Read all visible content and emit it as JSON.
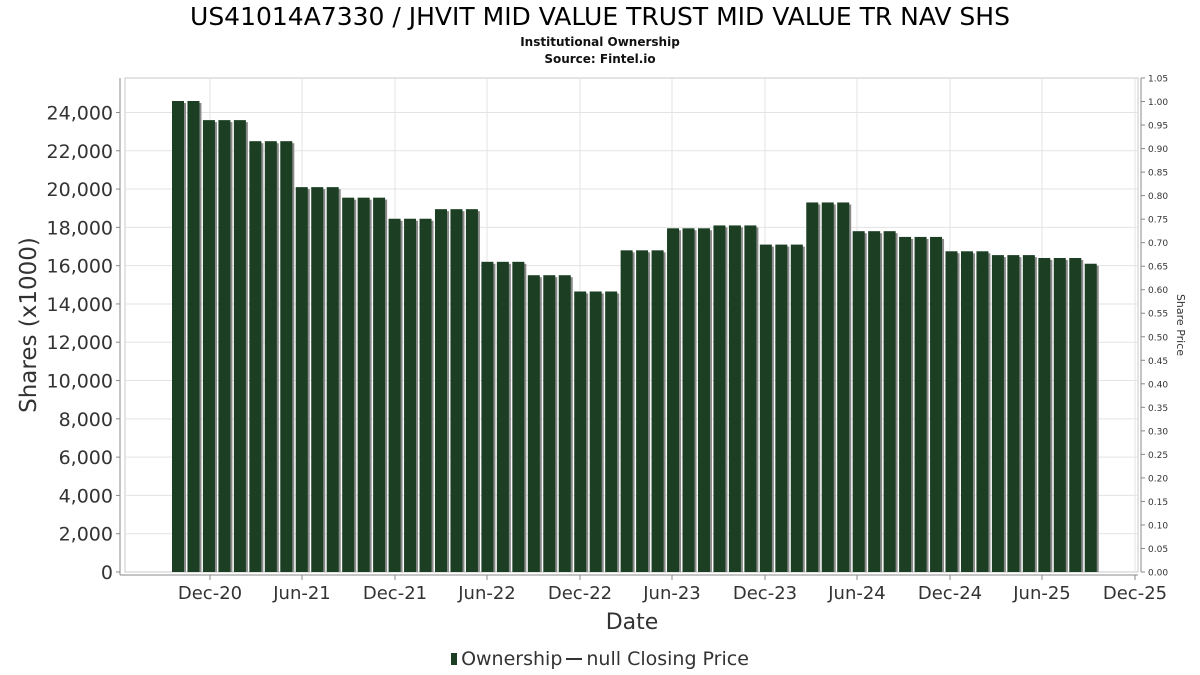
{
  "chart_data": {
    "type": "bar",
    "title": "US41014A7330 / JHVIT MID VALUE TRUST MID VALUE TR NAV SHS",
    "subtitle": "Institutional Ownership",
    "source": "Source: Fintel.io",
    "xlabel": "Date",
    "ylabel": "Shares (x1000)",
    "y2label": "Share Price",
    "ylim": [
      0,
      25800
    ],
    "y2lim": [
      0,
      1.05
    ],
    "grid": true,
    "yticks": [
      "0",
      "2,000",
      "4,000",
      "6,000",
      "8,000",
      "10,000",
      "12,000",
      "14,000",
      "16,000",
      "18,000",
      "20,000",
      "22,000",
      "24,000"
    ],
    "y2ticks": [
      "0.00",
      "0.05",
      "0.10",
      "0.15",
      "0.20",
      "0.25",
      "0.30",
      "0.35",
      "0.40",
      "0.45",
      "0.50",
      "0.55",
      "0.60",
      "0.65",
      "0.70",
      "0.75",
      "0.80",
      "0.85",
      "0.90",
      "0.95",
      "1.00",
      "1.05"
    ],
    "xticks": [
      "Dec-20",
      "Jun-21",
      "Dec-21",
      "Jun-22",
      "Dec-22",
      "Jun-23",
      "Dec-23",
      "Jun-24",
      "Dec-24",
      "Jun-25",
      "Dec-25"
    ],
    "legend": {
      "placement": "bottom",
      "ownership": "Ownership",
      "price": "null Closing Price"
    },
    "colors": {
      "bar": "#1c3f24",
      "bar_shadow": "#8a8a8a"
    },
    "series": [
      {
        "name": "Ownership",
        "values": [
          24600,
          24600,
          23600,
          23600,
          23600,
          22500,
          22500,
          22500,
          20100,
          20100,
          20100,
          19550,
          19550,
          19550,
          18450,
          18450,
          18450,
          18950,
          18950,
          18950,
          16200,
          16200,
          16200,
          15500,
          15500,
          15500,
          14650,
          14650,
          14650,
          16800,
          16800,
          16800,
          17950,
          17950,
          17950,
          18100,
          18100,
          18100,
          17100,
          17100,
          17100,
          19300,
          19300,
          19300,
          17800,
          17800,
          17800,
          17500,
          17500,
          17500,
          16750,
          16750,
          16750,
          16550,
          16550,
          16550,
          16400,
          16400,
          16400,
          16100
        ]
      }
    ]
  }
}
